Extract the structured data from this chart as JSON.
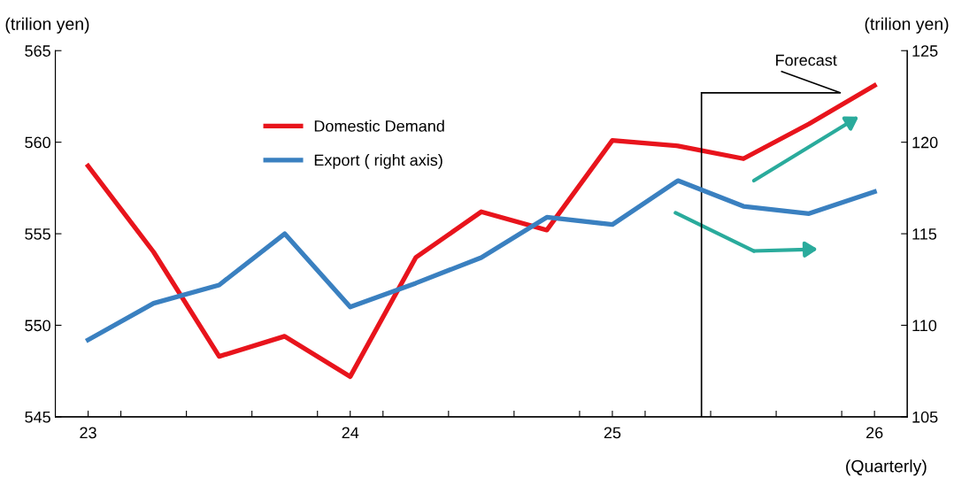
{
  "chart_data": {
    "type": "line",
    "ylabel": "(trilion yen)",
    "y2label": "(trilion yen)",
    "x": [
      23,
      23.25,
      23.5,
      23.75,
      24,
      24.25,
      24.5,
      24.75,
      25,
      25.25,
      25.5,
      25.75,
      26
    ],
    "series": [
      {
        "name": "Domestic Demand",
        "color": "#e8141c",
        "values": [
          558.7,
          554.0,
          548.3,
          549.4,
          547.2,
          553.7,
          556.2,
          555.2,
          560.1,
          559.8,
          559.1,
          561.0,
          563.1
        ]
      },
      {
        "name": "Export ( right axis)",
        "color": "#3a80c0",
        "axis": "y2",
        "values": [
          109.2,
          111.2,
          112.2,
          115.0,
          111.0,
          112.3,
          113.7,
          115.9,
          115.5,
          117.9,
          116.5,
          116.1,
          117.3
        ]
      }
    ],
    "xlim": [
      22.875,
      26.125
    ],
    "xticks": [
      23,
      {
        "value": 23.125,
        "label": null
      },
      {
        "value": 23.375,
        "label": null
      },
      {
        "value": 23.625,
        "label": null
      },
      {
        "value": 23.875,
        "label": null
      },
      24,
      {
        "value": 24.125,
        "label": null
      },
      {
        "value": 24.375,
        "label": null
      },
      {
        "value": 24.625,
        "label": null
      },
      {
        "value": 24.875,
        "label": null
      },
      25,
      {
        "value": 25.125,
        "label": null
      },
      {
        "value": 25.375,
        "label": null
      },
      {
        "value": 25.625,
        "label": null
      },
      {
        "value": 25.875,
        "label": null
      },
      26
    ],
    "ylim": [
      545,
      565
    ],
    "yticks": [
      545,
      550,
      555,
      560,
      565
    ],
    "y2lim": [
      105,
      125
    ],
    "y2ticks": [
      105,
      110,
      115,
      120,
      125
    ],
    "ref_lines": [
      {
        "axis": "x",
        "value": 25.34,
        "label": "Forecast",
        "color": "#000000"
      }
    ],
    "annotations": [
      "(Quarterly)"
    ],
    "legend": "top left",
    "grid": false,
    "marker": "none",
    "line_style": "solid"
  }
}
